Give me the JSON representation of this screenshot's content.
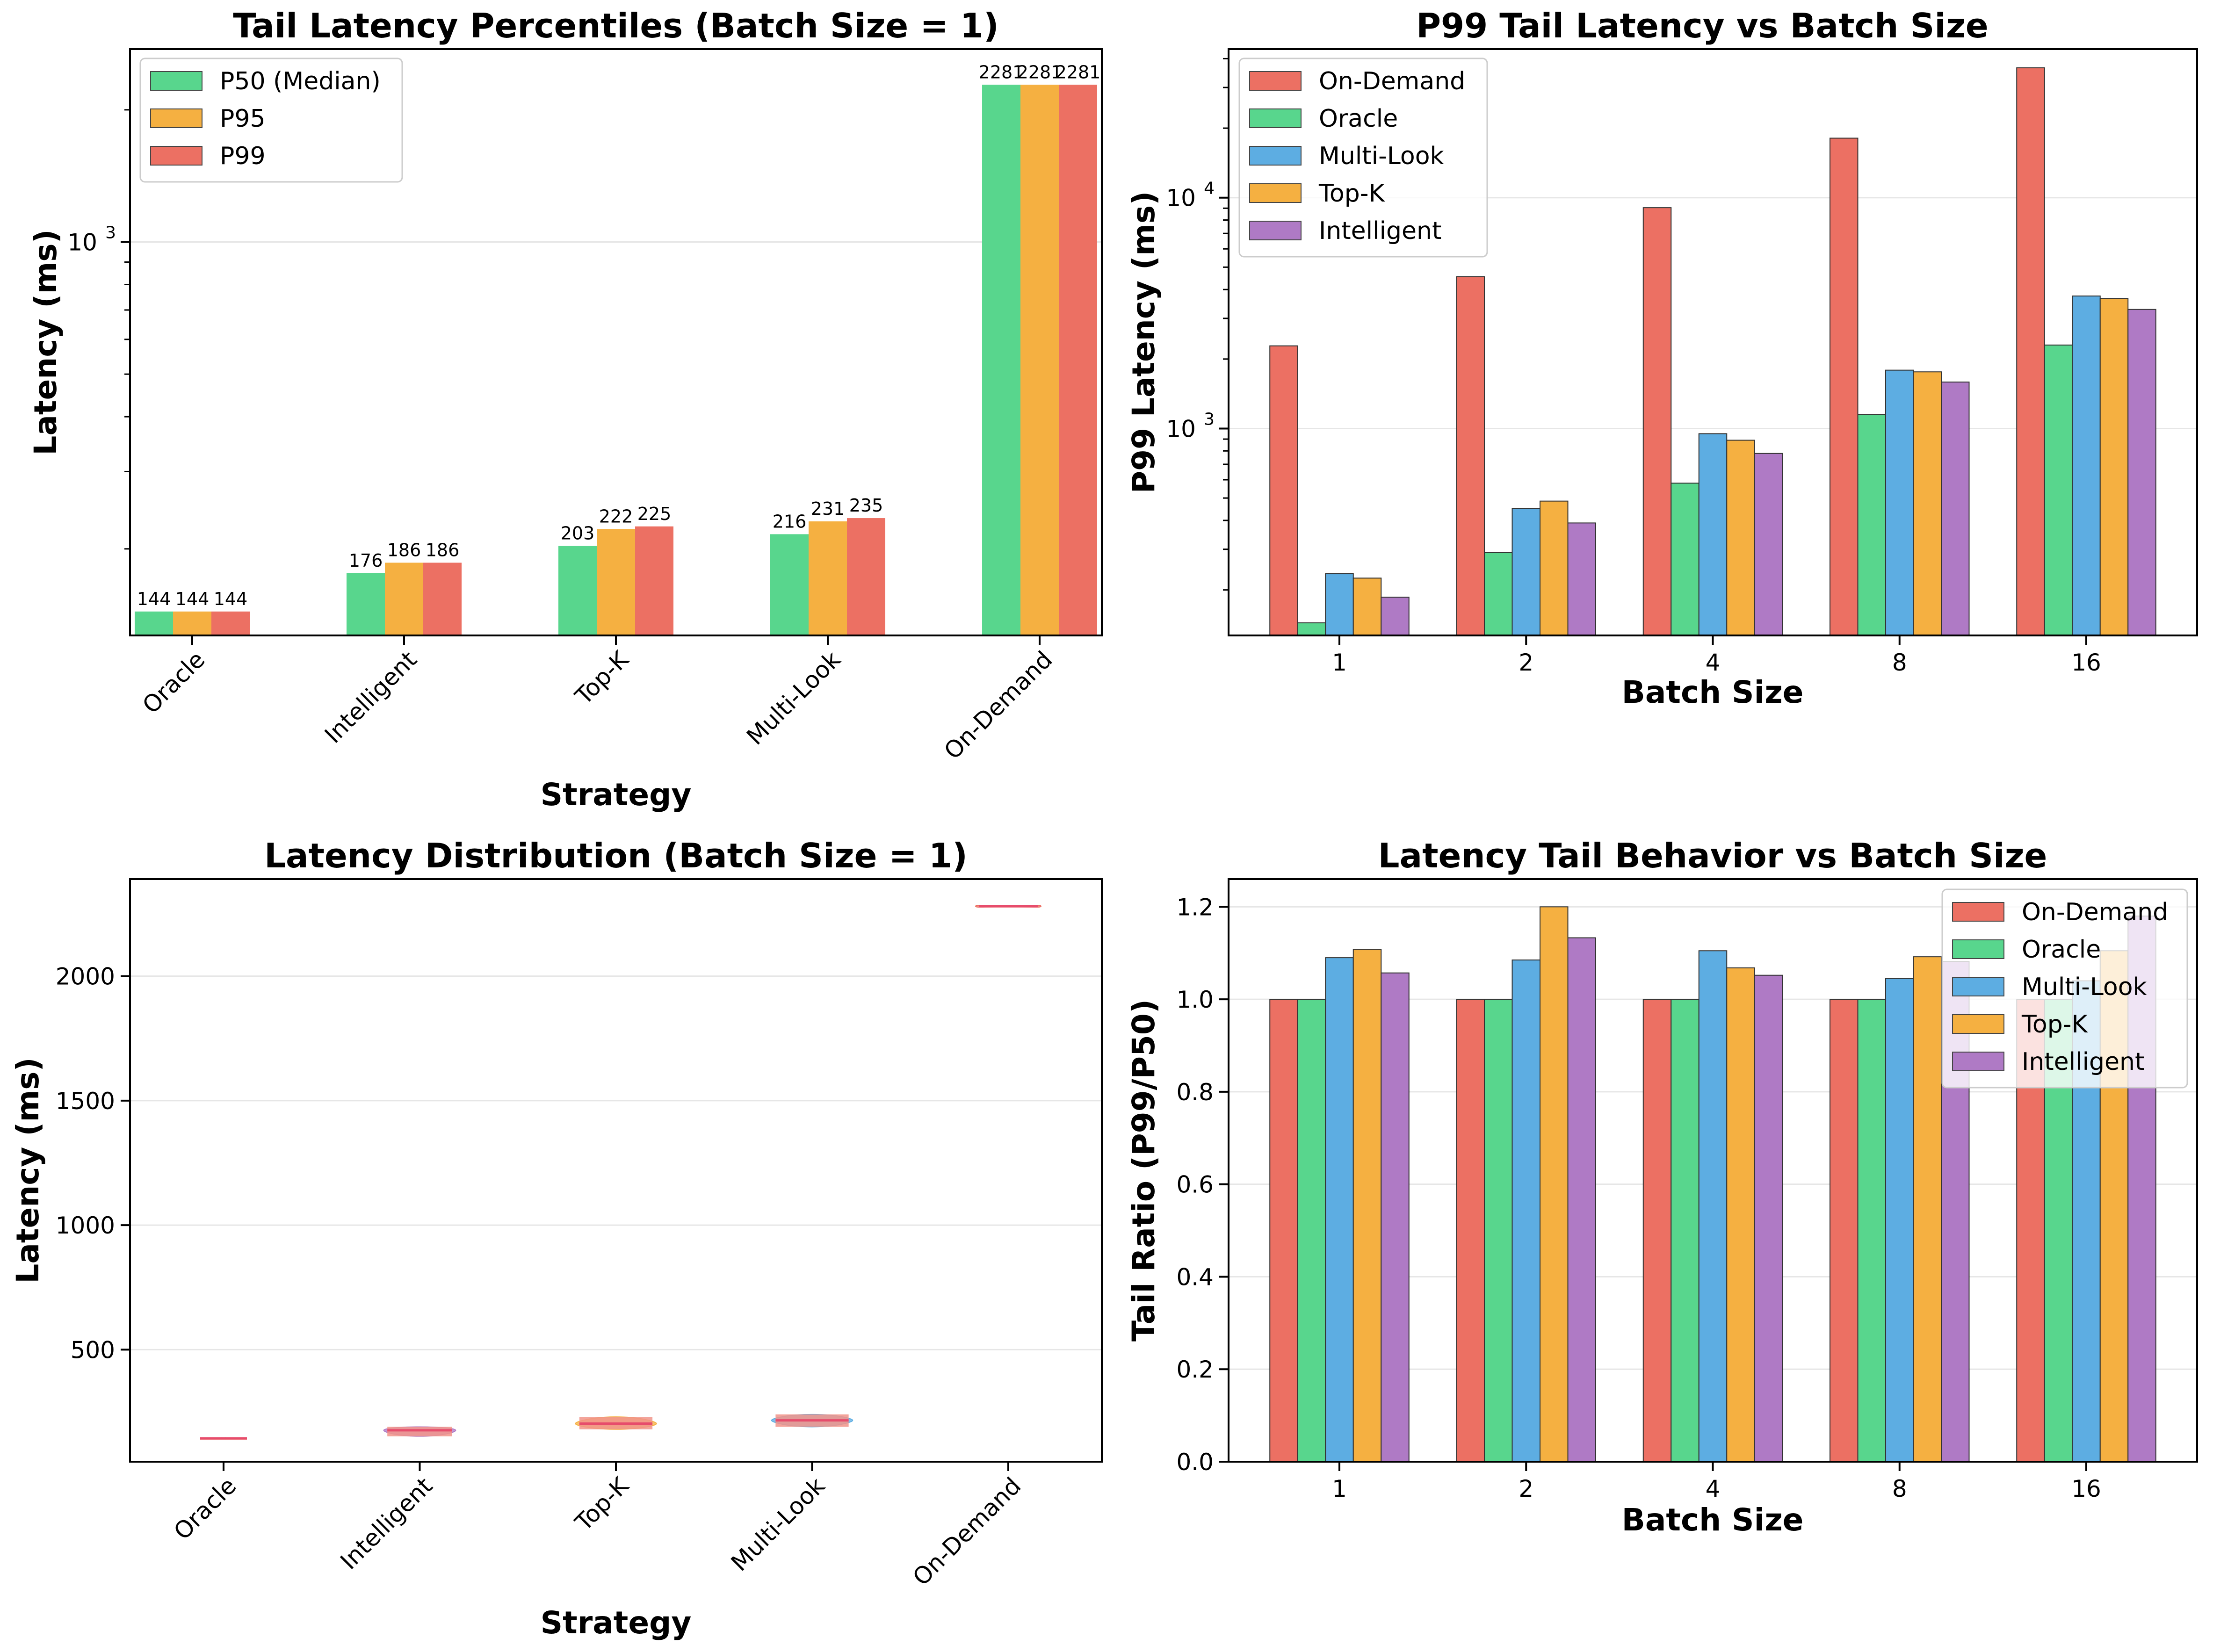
{
  "colors": {
    "ondemand": "#ec7063",
    "oracle": "#58d68d",
    "multilook": "#5dade2",
    "topk": "#f5b041",
    "intelligent": "#af7ac5"
  },
  "chart_data": [
    {
      "id": "c1",
      "type": "bar",
      "title": "Tail Latency Percentiles (Batch Size = 1)",
      "xlabel": "Strategy",
      "ylabel": "Latency (ms)",
      "yscale": "log",
      "ylim": [
        127,
        2750
      ],
      "yticks": [
        {
          "value": 1000,
          "label": "10",
          "exp": "3"
        }
      ],
      "categories": [
        "Oracle",
        "Intelligent",
        "Top-K",
        "Multi-Look",
        "On-Demand"
      ],
      "legend_position": "upper-left",
      "series": [
        {
          "name": "P50 (Median)",
          "color": "#58d68d",
          "values": [
            144,
            176,
            203,
            216,
            2281
          ]
        },
        {
          "name": "P95",
          "color": "#f5b041",
          "values": [
            144,
            186,
            222,
            231,
            2281
          ]
        },
        {
          "name": "P99",
          "color": "#ec7063",
          "values": [
            144,
            186,
            225,
            235,
            2281
          ]
        }
      ],
      "value_labels": [
        [
          "144",
          "176",
          "203",
          "216",
          "2281"
        ],
        [
          "144",
          "186",
          "222",
          "231",
          "2281"
        ],
        [
          "144",
          "186",
          "225",
          "235",
          "2281"
        ]
      ]
    },
    {
      "id": "c2",
      "type": "bar",
      "title": "P99 Tail Latency vs Batch Size",
      "xlabel": "Batch Size",
      "ylabel": "P99 Latency (ms)",
      "yscale": "log",
      "ylim": [
        127,
        44000
      ],
      "yticks": [
        {
          "value": 1000,
          "label": "10",
          "exp": "3"
        },
        {
          "value": 10000,
          "label": "10",
          "exp": "4"
        }
      ],
      "categories": [
        "1",
        "2",
        "4",
        "8",
        "16"
      ],
      "legend_position": "upper-left",
      "series": [
        {
          "name": "On-Demand",
          "color": "#ec7063",
          "values": [
            2281,
            4550,
            9050,
            18100,
            36500
          ]
        },
        {
          "name": "Oracle",
          "color": "#58d68d",
          "values": [
            144,
            290,
            580,
            1150,
            2300
          ]
        },
        {
          "name": "Multi-Look",
          "color": "#5dade2",
          "values": [
            235,
            450,
            950,
            1790,
            3750
          ]
        },
        {
          "name": "Top-K",
          "color": "#f5b041",
          "values": [
            225,
            485,
            890,
            1760,
            3660
          ]
        },
        {
          "name": "Intelligent",
          "color": "#af7ac5",
          "values": [
            186,
            390,
            780,
            1590,
            3280
          ]
        }
      ]
    },
    {
      "id": "c3",
      "type": "violin",
      "title": "Latency Distribution (Batch Size = 1)",
      "xlabel": "Strategy",
      "ylabel": "Latency (ms)",
      "ylim": [
        50,
        2390
      ],
      "yticks": [
        500,
        1000,
        1500,
        2000
      ],
      "categories": [
        "Oracle",
        "Intelligent",
        "Top-K",
        "Multi-Look",
        "On-Demand"
      ],
      "distributions": [
        {
          "color": "#58d68d",
          "min": 144,
          "median": 144,
          "max": 144,
          "spread": 0.02
        },
        {
          "color": "#af7ac5",
          "min": 152,
          "median": 176,
          "max": 190,
          "spread": 0.55
        },
        {
          "color": "#f5b041",
          "min": 180,
          "median": 203,
          "max": 230,
          "spread": 0.62
        },
        {
          "color": "#5dade2",
          "min": 190,
          "median": 216,
          "max": 240,
          "spread": 0.62
        },
        {
          "color": "#ec7063",
          "min": 2279,
          "median": 2281,
          "max": 2283,
          "spread": 0.5
        }
      ]
    },
    {
      "id": "c4",
      "type": "bar",
      "title": "Latency Tail Behavior vs Batch Size",
      "xlabel": "Batch Size",
      "ylabel": "Tail Ratio (P99/P50)",
      "ylim": [
        0,
        1.26
      ],
      "yticks": [
        0.0,
        0.2,
        0.4,
        0.6,
        0.8,
        1.0,
        1.2
      ],
      "categories": [
        "1",
        "2",
        "4",
        "8",
        "16"
      ],
      "legend_position": "upper-right",
      "series": [
        {
          "name": "On-Demand",
          "color": "#ec7063",
          "values": [
            1.0,
            1.0,
            1.0,
            1.0,
            1.0
          ]
        },
        {
          "name": "Oracle",
          "color": "#58d68d",
          "values": [
            1.0,
            1.0,
            1.0,
            1.0,
            1.0
          ]
        },
        {
          "name": "Multi-Look",
          "color": "#5dade2",
          "values": [
            1.09,
            1.085,
            1.105,
            1.045,
            1.04
          ]
        },
        {
          "name": "Top-K",
          "color": "#f5b041",
          "values": [
            1.108,
            1.2,
            1.068,
            1.092,
            1.105
          ]
        },
        {
          "name": "Intelligent",
          "color": "#af7ac5",
          "values": [
            1.057,
            1.133,
            1.052,
            1.082,
            1.18
          ]
        }
      ]
    }
  ]
}
